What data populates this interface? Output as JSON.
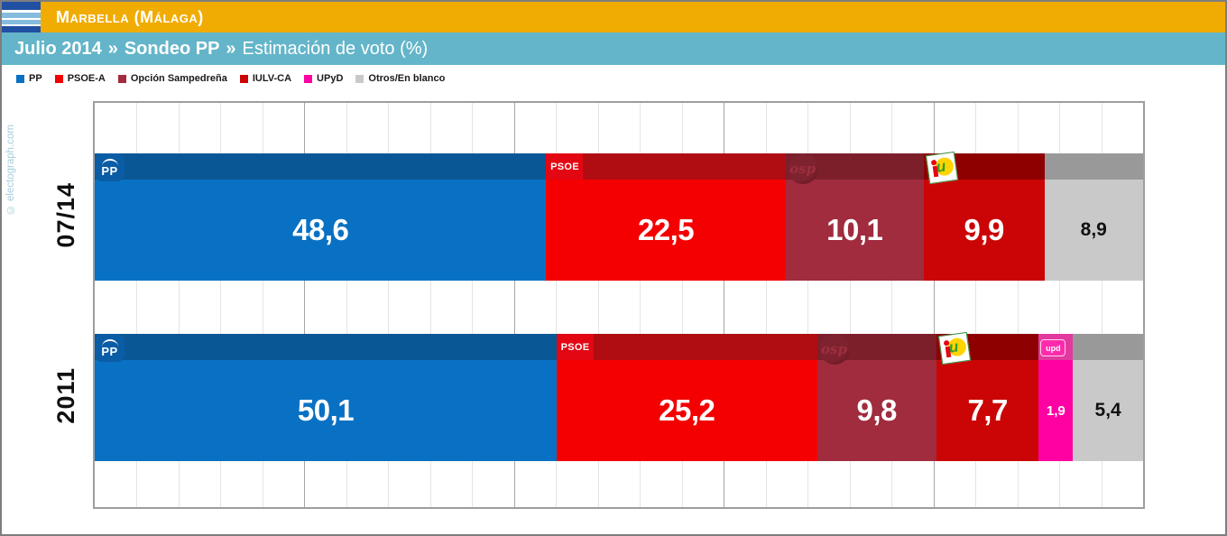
{
  "header": {
    "title": "Marbella (Málaga)"
  },
  "subheader": {
    "date": "Julio 2014",
    "separator": "»",
    "source": "Sondeo PP",
    "metric": "Estimación de voto (%)"
  },
  "watermark": "© electograph.com",
  "colors": {
    "gold_bar": "#F0AC02",
    "blue_bar": "#64B5C9",
    "flag_dark_blue": "#2150A3",
    "flag_light_blue": "#85BCDE",
    "watermark_blue": "#A6CFDD"
  },
  "chart_data": {
    "type": "bar",
    "stacked": true,
    "orientation": "horizontal",
    "unit": "%",
    "title": "Estimación de voto (%)",
    "categories": [
      "07/14",
      "2011"
    ],
    "x_axis": {
      "min": 0,
      "max": 100,
      "minor_step": 4,
      "major_step": 20,
      "tick_labels_visible": false,
      "grid": true
    },
    "legend_position": "top-left",
    "series": [
      {
        "name": "PP",
        "color": "#0971C3",
        "strip_color": "#0A5796",
        "logo": "pp",
        "logo_text": "PP",
        "values": [
          48.6,
          50.1
        ]
      },
      {
        "name": "PSOE-A",
        "color": "#F40000",
        "strip_color": "#B00D12",
        "logo": "psoe",
        "logo_text": "PSOE",
        "values": [
          22.5,
          25.2
        ]
      },
      {
        "name": "Opción Sampedreña",
        "color": "#A02C3E",
        "strip_color": "#7C1F2B",
        "logo": "osp",
        "logo_text": "osp",
        "values": [
          10.1,
          9.8
        ]
      },
      {
        "name": "IULV-CA",
        "color": "#CB0505",
        "strip_color": "#8E0000",
        "logo": "iu",
        "logo_text": "u",
        "values": [
          9.9,
          7.7
        ]
      },
      {
        "name": "UPyD",
        "color": "#FF00A2",
        "strip_color": "#E2399F",
        "logo": "upyd",
        "logo_text": "upd",
        "values": [
          null,
          1.9
        ]
      },
      {
        "name": "Otros/En blanco",
        "color": "#C9C9C9",
        "strip_color": "#999999",
        "logo": null,
        "logo_text": null,
        "values": [
          8.9,
          5.4
        ],
        "label_dark": true
      }
    ],
    "value_display": [
      [
        "48,6",
        "22,5",
        "10,1",
        "9,9",
        null,
        "8,9"
      ],
      [
        "50,1",
        "25,2",
        "9,8",
        "7,7",
        "1,9",
        "5,4"
      ]
    ]
  }
}
